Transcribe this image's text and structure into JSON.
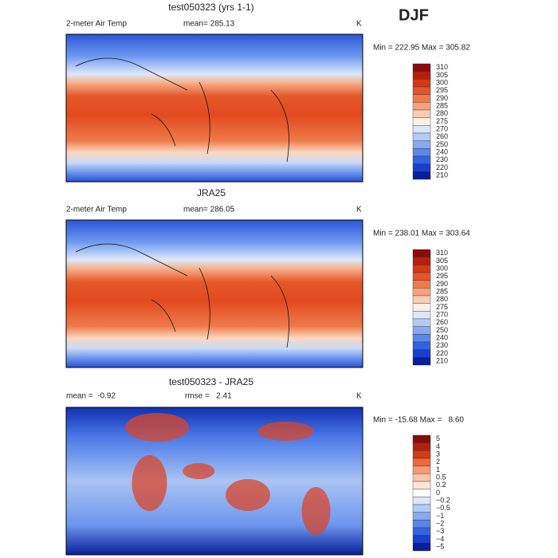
{
  "header": {
    "season": "DJF"
  },
  "panels": [
    {
      "title": "test050323 (yrs 1-1)",
      "variable": "2-meter Air Temp",
      "stat1": "mean= 285.13",
      "units": "K",
      "range": "Min = 222.95 Max = 305.82",
      "colorbar": [
        "310",
        "305",
        "300",
        "295",
        "290",
        "285",
        "280",
        "275",
        "270",
        "260",
        "250",
        "240",
        "230",
        "220",
        "210"
      ]
    },
    {
      "title": "JRA25",
      "variable": "2-meter Air Temp",
      "stat1": "mean= 286.05",
      "units": "K",
      "range": "Min = 238.01 Max = 303.64",
      "colorbar": [
        "310",
        "305",
        "300",
        "295",
        "290",
        "285",
        "280",
        "275",
        "270",
        "260",
        "250",
        "240",
        "230",
        "220",
        "210"
      ]
    },
    {
      "title": "test050323 - JRA25",
      "stat1": "mean =  -0.92",
      "stat2": "rmse =   2.41",
      "units": "K",
      "range": "Min = -15.68 Max =   8.60",
      "colorbar": [
        "5",
        "4",
        "3",
        "2",
        "1",
        "0.5",
        "0.2",
        "0",
        "−0.2",
        "−0.5",
        "−1",
        "−2",
        "−3",
        "−4",
        "−5"
      ]
    }
  ]
}
